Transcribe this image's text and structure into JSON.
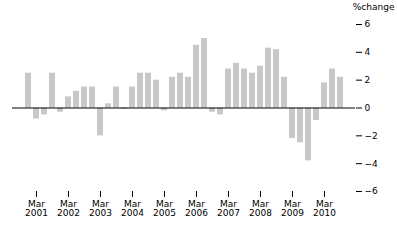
{
  "chart_data": {
    "type": "bar",
    "categories": [
      null,
      "Mar\n2001",
      null,
      null,
      null,
      "Mar\n2002",
      null,
      null,
      null,
      "Mar\n2003",
      null,
      null,
      null,
      "Mar\n2004",
      null,
      null,
      null,
      "Mar\n2005",
      null,
      null,
      null,
      "Mar\n2006",
      null,
      null,
      null,
      "Mar\n2007",
      null,
      null,
      null,
      "Mar\n2008",
      null,
      null,
      null,
      "Mar\n2009",
      null,
      null,
      null,
      "Mar\n2010",
      null,
      null
    ],
    "values": [
      2.5,
      -0.8,
      -0.5,
      2.5,
      -0.3,
      0.8,
      1.2,
      1.5,
      1.5,
      -2.0,
      0.3,
      1.5,
      -0.1,
      1.5,
      2.5,
      2.5,
      2.0,
      -0.2,
      2.2,
      2.5,
      2.2,
      4.5,
      5.0,
      -0.3,
      -0.5,
      2.8,
      3.2,
      2.8,
      2.5,
      3.0,
      4.3,
      4.2,
      2.2,
      -2.2,
      -2.5,
      -3.8,
      -0.9,
      1.8,
      2.8,
      2.2
    ],
    "color": "#c8c8c8",
    "ylabel": "%change",
    "ylim": [
      -6,
      6
    ],
    "yticks": [
      -6,
      -4,
      -2,
      0,
      2,
      4,
      6
    ],
    "grid": false
  }
}
